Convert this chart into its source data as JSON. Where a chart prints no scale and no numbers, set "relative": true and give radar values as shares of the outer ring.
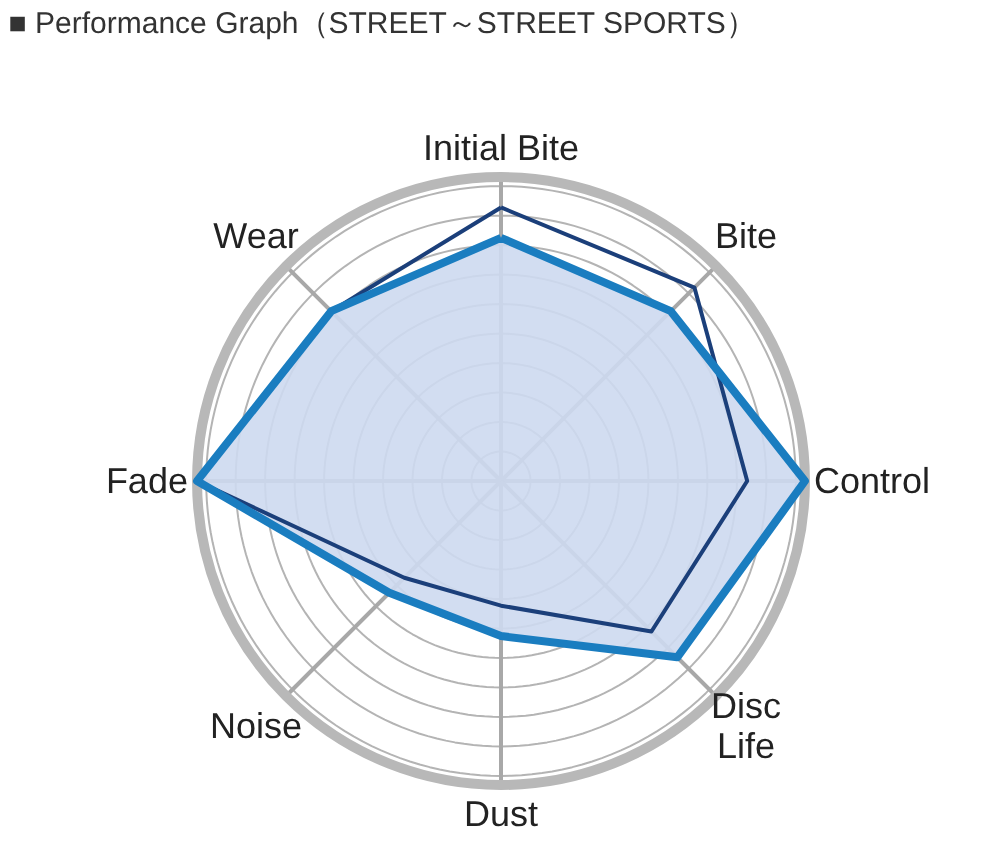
{
  "chart_data": {
    "type": "radar",
    "title": "■ Performance Graph（STREET～STREET SPORTS）",
    "relative": true,
    "grid": true,
    "categories": [
      "Initial Bite",
      "Bite",
      "Control",
      "Disc Life",
      "Dust",
      "Noise",
      "Fade",
      "Wear"
    ],
    "series": [
      {
        "color": "#1a7dc0",
        "values": [
          0.8,
          0.79,
          1.0,
          0.82,
          0.51,
          0.52,
          1.0,
          0.79
        ]
      },
      {
        "color": "#1b3f7a",
        "values": [
          0.9,
          0.9,
          0.81,
          0.7,
          0.41,
          0.45,
          1.0,
          0.79
        ]
      }
    ]
  }
}
